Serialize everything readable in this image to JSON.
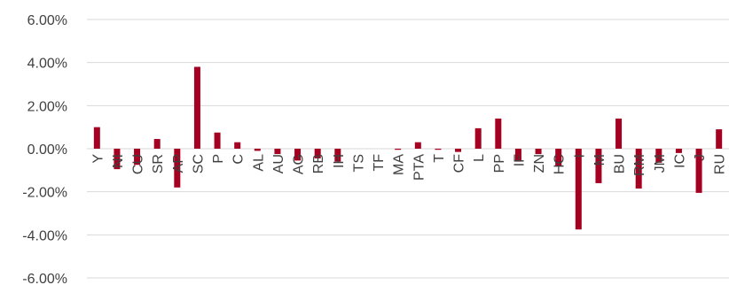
{
  "chart_data": {
    "type": "bar",
    "categories": [
      "Y",
      "NI",
      "CU",
      "SR",
      "AP",
      "SC",
      "P",
      "C",
      "AL",
      "AU",
      "AG",
      "RB",
      "IH",
      "TS",
      "TF",
      "MA",
      "PTA",
      "T",
      "CF",
      "L",
      "PP",
      "IF",
      "ZN",
      "HC",
      "I",
      "M",
      "BU",
      "RM",
      "JM",
      "IC",
      "J",
      "RU"
    ],
    "values": [
      1.0,
      -0.95,
      -0.75,
      0.45,
      -1.8,
      3.8,
      0.75,
      0.3,
      -0.1,
      -0.25,
      -0.55,
      -0.45,
      -0.6,
      0.0,
      0.0,
      -0.05,
      0.3,
      -0.05,
      -0.15,
      0.95,
      1.4,
      -0.6,
      -0.25,
      -0.8,
      -3.75,
      -1.6,
      1.4,
      -1.85,
      -0.65,
      -0.2,
      -2.05,
      0.9
    ],
    "yticks": [
      "6.00%",
      "4.00%",
      "2.00%",
      "0.00%",
      "-2.00%",
      "-4.00%",
      "-6.00%"
    ],
    "ylim": [
      -6,
      6
    ],
    "grid": true,
    "bar_color": "#a50021",
    "grid_color": "#d9d9d9",
    "text_color": "#404040"
  }
}
